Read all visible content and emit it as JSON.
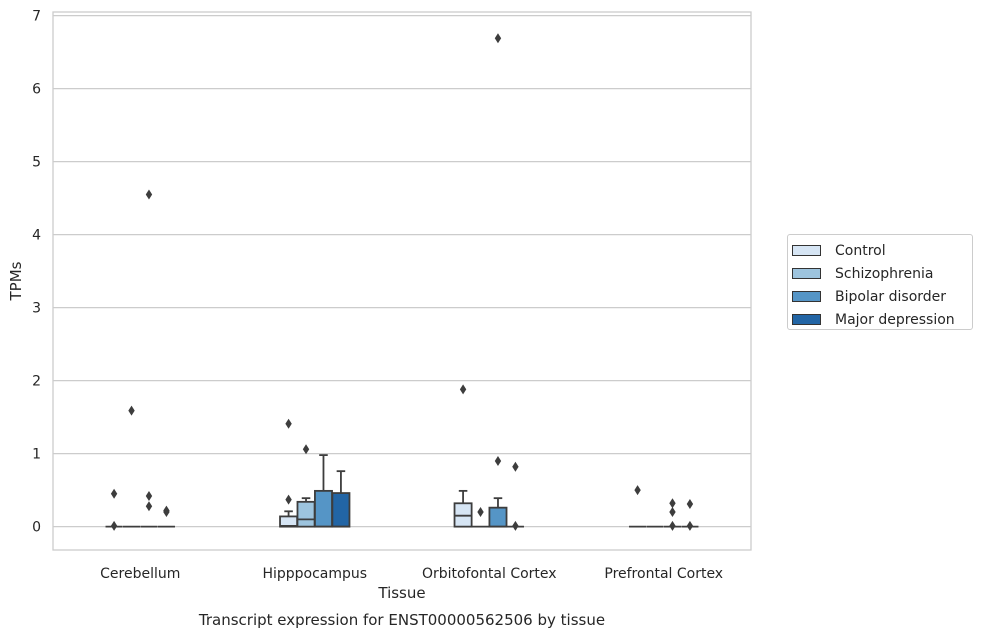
{
  "chart_data": {
    "type": "box",
    "title": "Transcript expression for ENST00000562506 by tissue",
    "xlabel": "Tissue",
    "ylabel": "TPMs",
    "ylim": [
      -0.32,
      7.05
    ],
    "yticks": [
      0,
      1,
      2,
      3,
      4,
      5,
      6,
      7
    ],
    "grid": "horizontal",
    "legend_position": "right",
    "categories": [
      "Cerebellum",
      "Hipppocampus",
      "Orbitofontal Cortex",
      "Prefrontal Cortex"
    ],
    "series": [
      {
        "name": "Control",
        "color": "#d6e5f4",
        "boxes": [
          {
            "q1": 0,
            "median": 0,
            "q3": 0,
            "whisker_low": 0,
            "whisker_high": 0,
            "outliers": [
              0.45,
              0.01
            ]
          },
          {
            "q1": 0,
            "median": 0.01,
            "q3": 0.14,
            "whisker_low": 0,
            "whisker_high": 0.21,
            "outliers": [
              1.41,
              0.37
            ]
          },
          {
            "q1": 0,
            "median": 0.15,
            "q3": 0.32,
            "whisker_low": 0,
            "whisker_high": 0.49,
            "outliers": [
              1.88
            ]
          },
          {
            "q1": 0,
            "median": 0,
            "q3": 0,
            "whisker_low": 0,
            "whisker_high": 0,
            "outliers": [
              0.5
            ]
          }
        ]
      },
      {
        "name": "Schizophrenia",
        "color": "#9dc4de",
        "boxes": [
          {
            "q1": 0,
            "median": 0,
            "q3": 0,
            "whisker_low": 0,
            "whisker_high": 0,
            "outliers": [
              1.59
            ]
          },
          {
            "q1": 0,
            "median": 0.1,
            "q3": 0.34,
            "whisker_low": 0,
            "whisker_high": 0.39,
            "outliers": [
              1.06
            ]
          },
          {
            "q1": 0,
            "median": 0,
            "q3": 0,
            "whisker_low": 0,
            "whisker_high": 0,
            "outliers": [
              0.2
            ]
          },
          {
            "q1": 0,
            "median": 0,
            "q3": 0,
            "whisker_low": 0,
            "whisker_high": 0,
            "outliers": []
          }
        ]
      },
      {
        "name": "Bipolar disorder",
        "color": "#5595c6",
        "boxes": [
          {
            "q1": 0,
            "median": 0,
            "q3": 0,
            "whisker_low": 0,
            "whisker_high": 0,
            "outliers": [
              4.55,
              0.42,
              0.28
            ]
          },
          {
            "q1": 0,
            "median": 0,
            "q3": 0.49,
            "whisker_low": 0,
            "whisker_high": 0.98,
            "outliers": []
          },
          {
            "q1": 0,
            "median": 0,
            "q3": 0.26,
            "whisker_low": 0,
            "whisker_high": 0.39,
            "outliers": [
              6.69,
              0.9
            ]
          },
          {
            "q1": 0,
            "median": 0,
            "q3": 0,
            "whisker_low": 0,
            "whisker_high": 0,
            "outliers": [
              0.32,
              0.2,
              0.01
            ]
          }
        ]
      },
      {
        "name": "Major depression",
        "color": "#2265a5",
        "boxes": [
          {
            "q1": 0,
            "median": 0,
            "q3": 0,
            "whisker_low": 0,
            "whisker_high": 0,
            "outliers": [
              0.22,
              0.2
            ]
          },
          {
            "q1": 0,
            "median": 0,
            "q3": 0.46,
            "whisker_low": 0,
            "whisker_high": 0.76,
            "outliers": []
          },
          {
            "q1": 0,
            "median": 0,
            "q3": 0,
            "whisker_low": 0,
            "whisker_high": 0,
            "outliers": [
              0.82,
              0.01
            ]
          },
          {
            "q1": 0,
            "median": 0,
            "q3": 0,
            "whisker_low": 0,
            "whisker_high": 0,
            "outliers": [
              0.31,
              0.01
            ]
          }
        ]
      }
    ]
  }
}
